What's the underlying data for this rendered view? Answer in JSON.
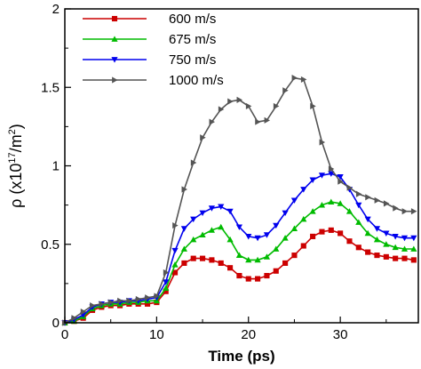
{
  "chart_data": {
    "type": "line",
    "xlabel": "Time (ps)",
    "ylabel": "ρ (x10",
    "ylabel_sup1": "17",
    "ylabel_mid": "/m",
    "ylabel_sup2": "2",
    "ylabel_end": ")",
    "xlim": [
      0,
      38.5
    ],
    "ylim": [
      0,
      2
    ],
    "xticks": [
      0,
      10,
      20,
      30
    ],
    "xtick_labels": [
      "0",
      "10",
      "20",
      "30"
    ],
    "yticks": [
      0,
      0.5,
      1,
      1.5,
      2
    ],
    "ytick_labels": [
      "0",
      "0.5",
      "1",
      "1.5",
      "2"
    ],
    "grid": false,
    "legend_position": "top-left",
    "series": [
      {
        "name": "600 m/s",
        "color": "#cc0000",
        "marker": "square",
        "x": [
          0,
          1,
          2,
          3,
          4,
          5,
          6,
          7,
          8,
          9,
          10,
          11,
          12,
          13,
          14,
          15,
          16,
          17,
          18,
          19,
          20,
          21,
          22,
          23,
          24,
          25,
          26,
          27,
          28,
          29,
          30,
          31,
          32,
          33,
          34,
          35,
          36,
          37,
          38
        ],
        "y": [
          0.0,
          0.01,
          0.03,
          0.08,
          0.1,
          0.11,
          0.11,
          0.12,
          0.12,
          0.12,
          0.13,
          0.2,
          0.32,
          0.38,
          0.41,
          0.41,
          0.4,
          0.38,
          0.35,
          0.3,
          0.28,
          0.28,
          0.3,
          0.33,
          0.38,
          0.43,
          0.49,
          0.55,
          0.58,
          0.59,
          0.57,
          0.52,
          0.48,
          0.45,
          0.43,
          0.42,
          0.41,
          0.41,
          0.4
        ]
      },
      {
        "name": "675 m/s",
        "color": "#00bb00",
        "marker": "triangle-up",
        "x": [
          0,
          1,
          2,
          3,
          4,
          5,
          6,
          7,
          8,
          9,
          10,
          11,
          12,
          13,
          14,
          15,
          16,
          17,
          18,
          19,
          20,
          21,
          22,
          23,
          24,
          25,
          26,
          27,
          28,
          29,
          30,
          31,
          32,
          33,
          34,
          35,
          36,
          37,
          38
        ],
        "y": [
          0.0,
          0.01,
          0.04,
          0.09,
          0.11,
          0.12,
          0.12,
          0.13,
          0.13,
          0.14,
          0.14,
          0.22,
          0.37,
          0.47,
          0.53,
          0.56,
          0.59,
          0.61,
          0.53,
          0.43,
          0.4,
          0.4,
          0.42,
          0.47,
          0.54,
          0.6,
          0.66,
          0.71,
          0.75,
          0.77,
          0.76,
          0.71,
          0.64,
          0.57,
          0.53,
          0.5,
          0.48,
          0.47,
          0.47
        ]
      },
      {
        "name": "750 m/s",
        "color": "#0000ee",
        "marker": "triangle-down",
        "x": [
          0,
          1,
          2,
          3,
          4,
          5,
          6,
          7,
          8,
          9,
          10,
          11,
          12,
          13,
          14,
          15,
          16,
          17,
          18,
          19,
          20,
          21,
          22,
          23,
          24,
          25,
          26,
          27,
          28,
          29,
          30,
          31,
          32,
          33,
          34,
          35,
          36,
          37,
          38
        ],
        "y": [
          0.0,
          0.02,
          0.05,
          0.1,
          0.12,
          0.13,
          0.13,
          0.14,
          0.14,
          0.15,
          0.16,
          0.26,
          0.46,
          0.6,
          0.66,
          0.7,
          0.73,
          0.74,
          0.71,
          0.61,
          0.55,
          0.54,
          0.56,
          0.62,
          0.7,
          0.78,
          0.85,
          0.91,
          0.94,
          0.95,
          0.93,
          0.85,
          0.75,
          0.66,
          0.6,
          0.57,
          0.55,
          0.54,
          0.54
        ]
      },
      {
        "name": "1000 m/s",
        "color": "#555555",
        "marker": "triangle-right",
        "x": [
          0,
          1,
          2,
          3,
          4,
          5,
          6,
          7,
          8,
          9,
          10,
          11,
          12,
          13,
          14,
          15,
          16,
          17,
          18,
          19,
          20,
          21,
          22,
          23,
          24,
          25,
          26,
          27,
          28,
          29,
          30,
          31,
          32,
          33,
          34,
          35,
          36,
          37,
          38
        ],
        "y": [
          0.0,
          0.03,
          0.07,
          0.11,
          0.12,
          0.13,
          0.14,
          0.14,
          0.15,
          0.16,
          0.17,
          0.32,
          0.62,
          0.85,
          1.02,
          1.18,
          1.28,
          1.36,
          1.41,
          1.42,
          1.38,
          1.28,
          1.29,
          1.38,
          1.48,
          1.56,
          1.55,
          1.38,
          1.15,
          0.98,
          0.9,
          0.86,
          0.82,
          0.8,
          0.78,
          0.76,
          0.73,
          0.71,
          0.71
        ]
      }
    ]
  }
}
